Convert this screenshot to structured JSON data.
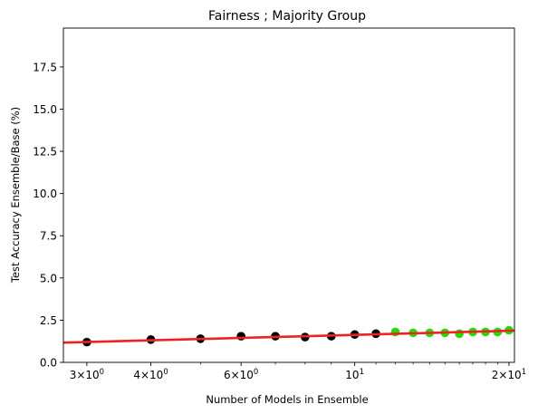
{
  "chart_data": {
    "type": "scatter",
    "title": "Fairness ; Majority Group",
    "xlabel": "Number of Models in Ensemble",
    "ylabel": "Test Accuracy Ensemble/Base (%)",
    "xscale": "log",
    "xlim": [
      2.7,
      20.5
    ],
    "ylim": [
      0,
      19.8
    ],
    "grid": false,
    "x_ticks": [
      {
        "value": 3,
        "base": "3×10",
        "exp": "0"
      },
      {
        "value": 4,
        "base": "4×10",
        "exp": "0"
      },
      {
        "value": 6,
        "base": "6×10",
        "exp": "0"
      },
      {
        "value": 10,
        "base": "10",
        "exp": "1"
      },
      {
        "value": 20,
        "base": "2×10",
        "exp": "1"
      }
    ],
    "y_ticks": [
      {
        "value": 0,
        "label": "0.0"
      },
      {
        "value": 2.5,
        "label": "2.5"
      },
      {
        "value": 5,
        "label": "5.0"
      },
      {
        "value": 7.5,
        "label": "7.5"
      },
      {
        "value": 10,
        "label": "10.0"
      },
      {
        "value": 12.5,
        "label": "12.5"
      },
      {
        "value": 15,
        "label": "15.0"
      },
      {
        "value": 17.5,
        "label": "17.5"
      }
    ],
    "series": [
      {
        "color": "#000000",
        "points": [
          {
            "x": 3,
            "y": 1.2
          },
          {
            "x": 4,
            "y": 1.35
          },
          {
            "x": 5,
            "y": 1.4
          },
          {
            "x": 6,
            "y": 1.55
          },
          {
            "x": 7,
            "y": 1.55
          },
          {
            "x": 8,
            "y": 1.5
          },
          {
            "x": 9,
            "y": 1.55
          },
          {
            "x": 10,
            "y": 1.65
          },
          {
            "x": 11,
            "y": 1.7
          }
        ]
      },
      {
        "color": "#22dd00",
        "points": [
          {
            "x": 12,
            "y": 1.8
          },
          {
            "x": 13,
            "y": 1.75
          },
          {
            "x": 14,
            "y": 1.75
          },
          {
            "x": 15,
            "y": 1.75
          },
          {
            "x": 16,
            "y": 1.7
          },
          {
            "x": 17,
            "y": 1.8
          },
          {
            "x": 18,
            "y": 1.8
          },
          {
            "x": 19,
            "y": 1.8
          },
          {
            "x": 20,
            "y": 1.9
          }
        ]
      }
    ],
    "fit_line": {
      "color": "#ee2222",
      "points": [
        {
          "x": 2.7,
          "y": 1.17
        },
        {
          "x": 20.5,
          "y": 1.88
        }
      ]
    }
  }
}
